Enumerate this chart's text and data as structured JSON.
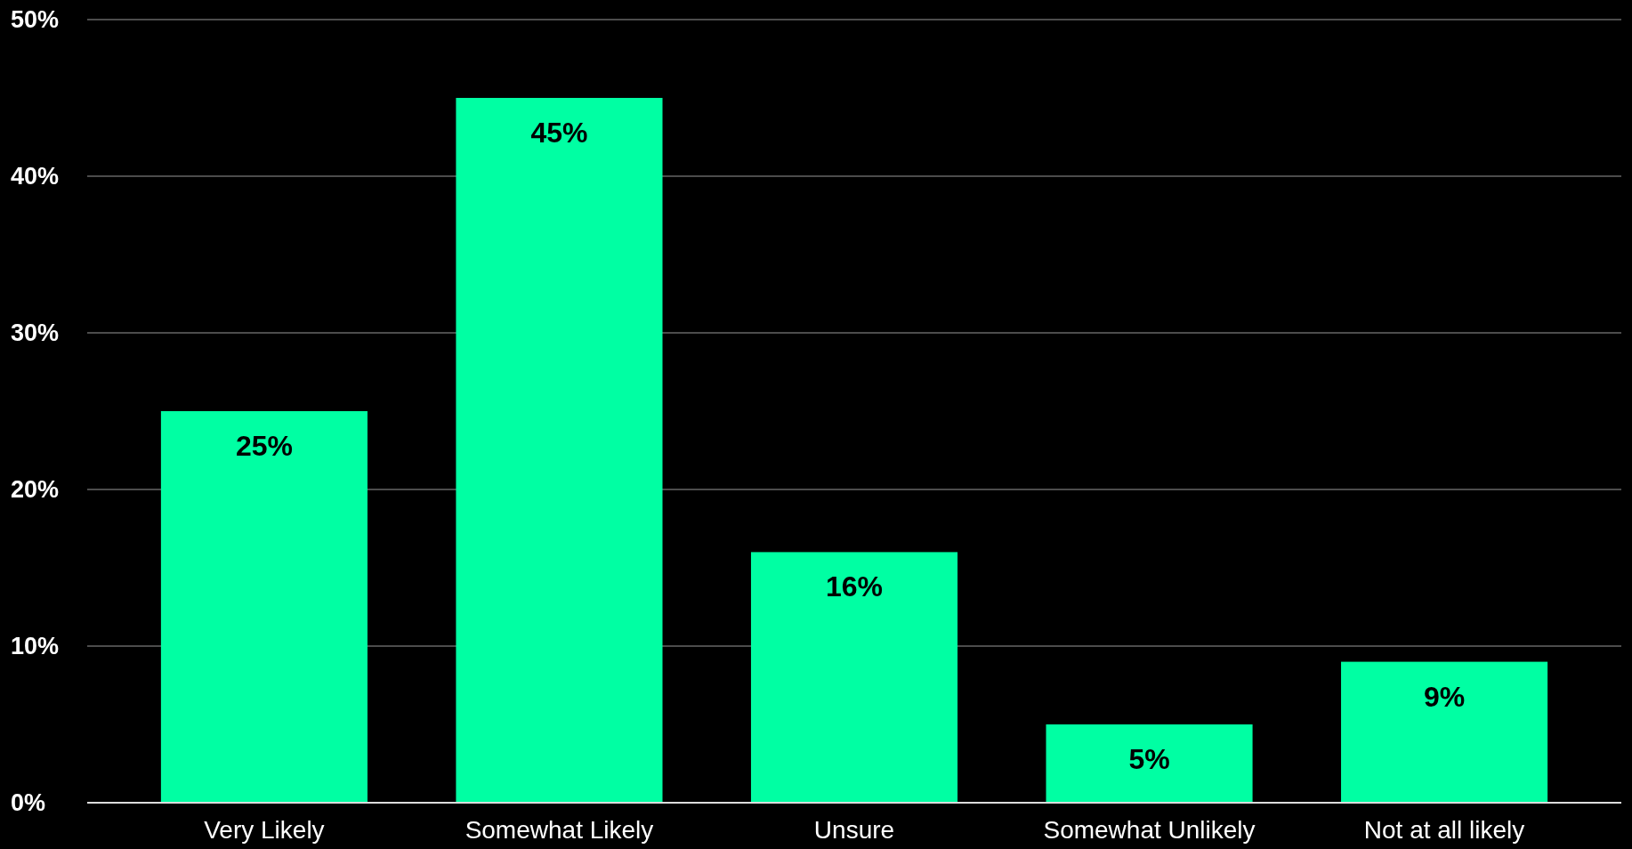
{
  "chart_data": {
    "type": "bar",
    "categories": [
      "Very Likely",
      "Somewhat Likely",
      "Unsure",
      "Somewhat Unlikely",
      "Not at all likely"
    ],
    "values": [
      25,
      45,
      16,
      5,
      9
    ],
    "color": "#00ffa3",
    "data_labels": true,
    "value_labels": [
      "25%",
      "45%",
      "16%",
      "5%",
      "9%"
    ],
    "ylim": [
      0,
      50
    ],
    "yticks": [
      {
        "value": 0,
        "label": "0%"
      },
      {
        "value": 10,
        "label": "10%"
      },
      {
        "value": 20,
        "label": "20%"
      },
      {
        "value": 30,
        "label": "30%"
      },
      {
        "value": 40,
        "label": "40%"
      },
      {
        "value": 50,
        "label": "50%"
      }
    ],
    "grid": "y"
  }
}
